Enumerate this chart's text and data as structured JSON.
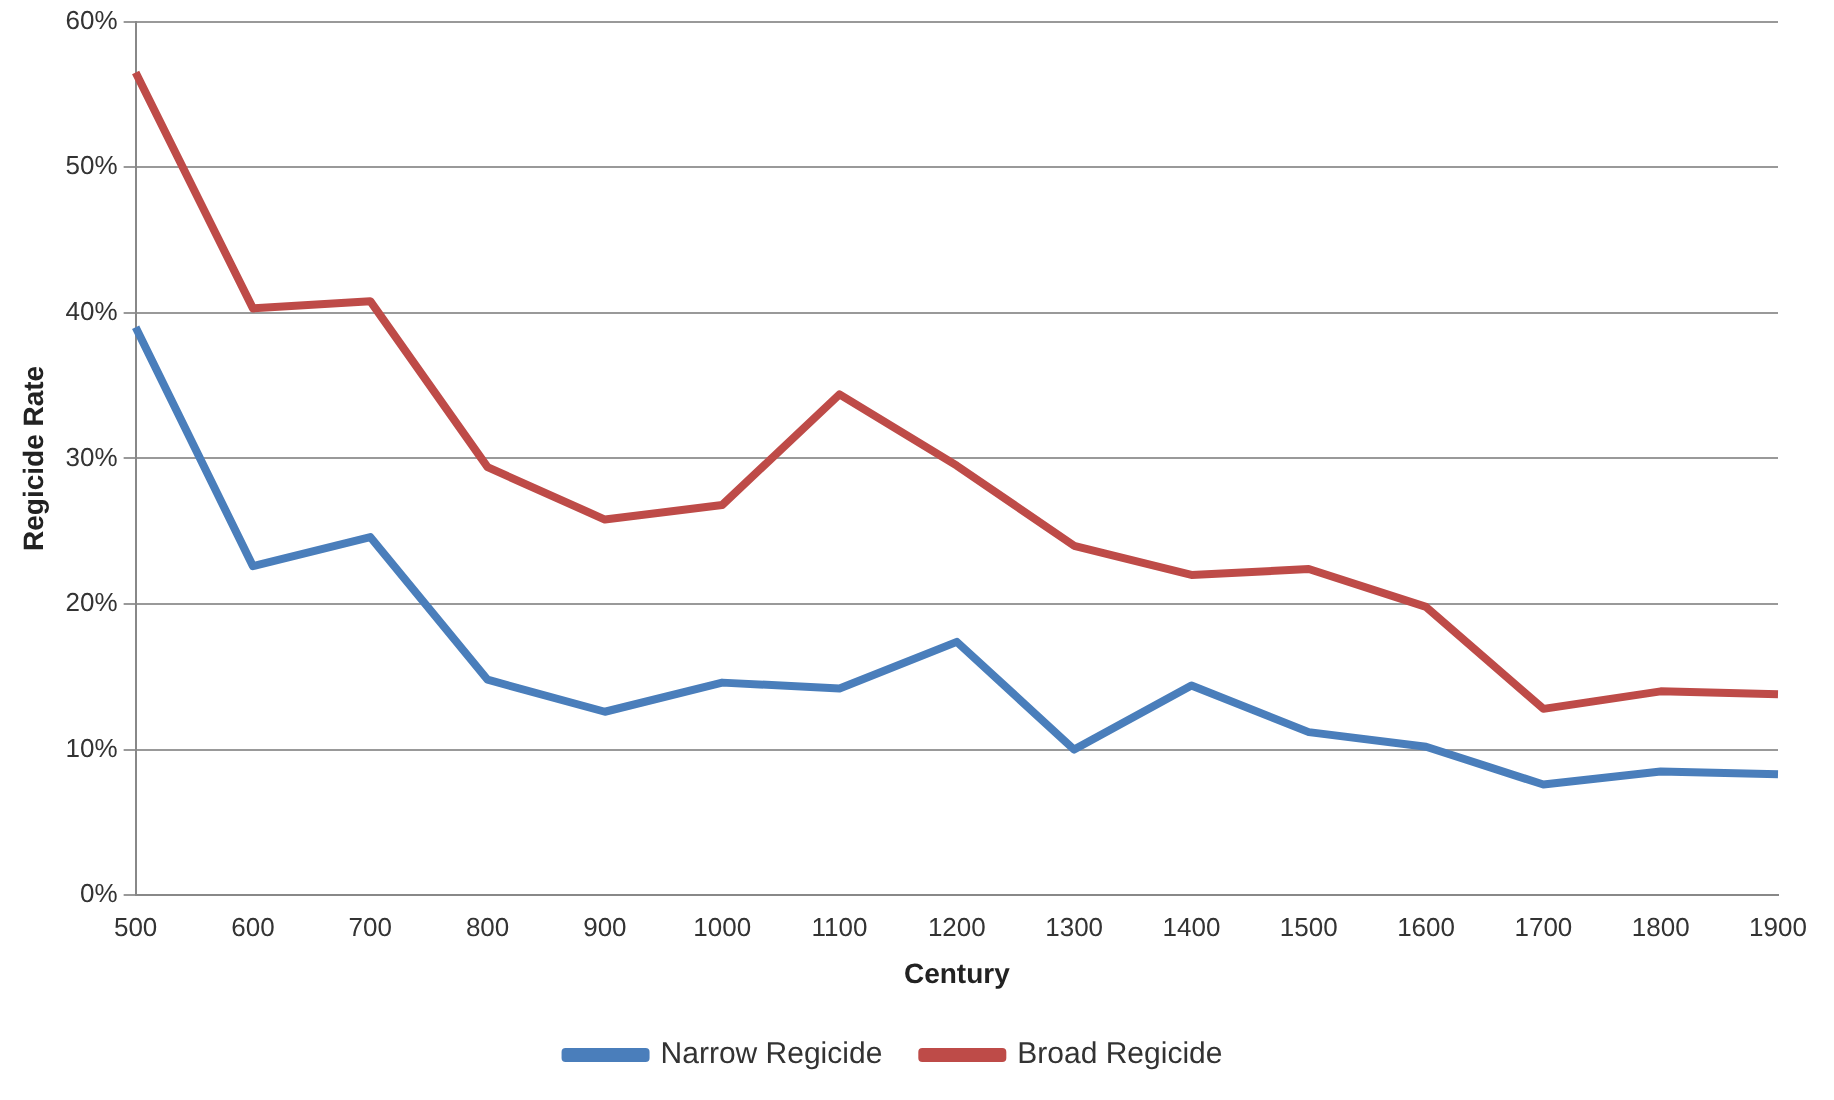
{
  "chart_data": {
    "type": "line",
    "xlabel": "Century",
    "ylabel": "Regicide Rate",
    "categories": [
      "500",
      "600",
      "700",
      "800",
      "900",
      "1000",
      "1100",
      "1200",
      "1300",
      "1400",
      "1500",
      "1600",
      "1700",
      "1800",
      "1900"
    ],
    "series": [
      {
        "name": "Narrow Regicide",
        "color": "#4a7ebb",
        "values": [
          39,
          22.6,
          24.6,
          14.8,
          12.6,
          14.6,
          14.2,
          17.4,
          10,
          14.4,
          11.2,
          10.2,
          7.6,
          8.5,
          8.3
        ]
      },
      {
        "name": "Broad Regicide",
        "color": "#be4b48",
        "values": [
          56.5,
          40.3,
          40.8,
          29.4,
          25.8,
          26.8,
          34.4,
          29.5,
          24,
          22,
          22.4,
          19.8,
          12.8,
          14,
          13.8
        ]
      }
    ],
    "ylim": [
      0,
      60
    ],
    "yticks": [
      {
        "value": 0,
        "label": "0%"
      },
      {
        "value": 10,
        "label": "10%"
      },
      {
        "value": 20,
        "label": "20%"
      },
      {
        "value": 30,
        "label": "30%"
      },
      {
        "value": 40,
        "label": "40%"
      },
      {
        "value": 50,
        "label": "50%"
      },
      {
        "value": 60,
        "label": "60%"
      }
    ],
    "grid": "y",
    "legend": "bottom",
    "marker": "none",
    "line_style": "solid"
  }
}
